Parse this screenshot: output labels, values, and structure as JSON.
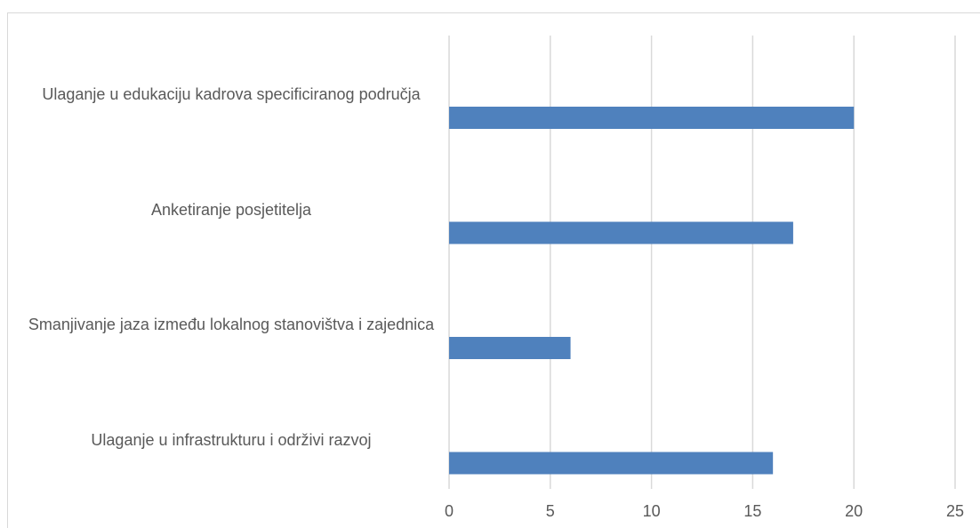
{
  "chart_data": {
    "type": "barh",
    "categories": [
      "Ulaganje u edukaciju kadrova specificiranog područja",
      "Anketiranje posjetitelja",
      "Smanjivanje jaza između lokalnog stanovištva i zajednica",
      "Ulaganje u infrastrukturu i održivi razvoj"
    ],
    "values": [
      20,
      17,
      6,
      16
    ],
    "color": "#4f81bd",
    "xlim": [
      0,
      25
    ],
    "xticks": [
      0,
      5,
      10,
      15,
      20,
      25
    ],
    "grid": true
  }
}
